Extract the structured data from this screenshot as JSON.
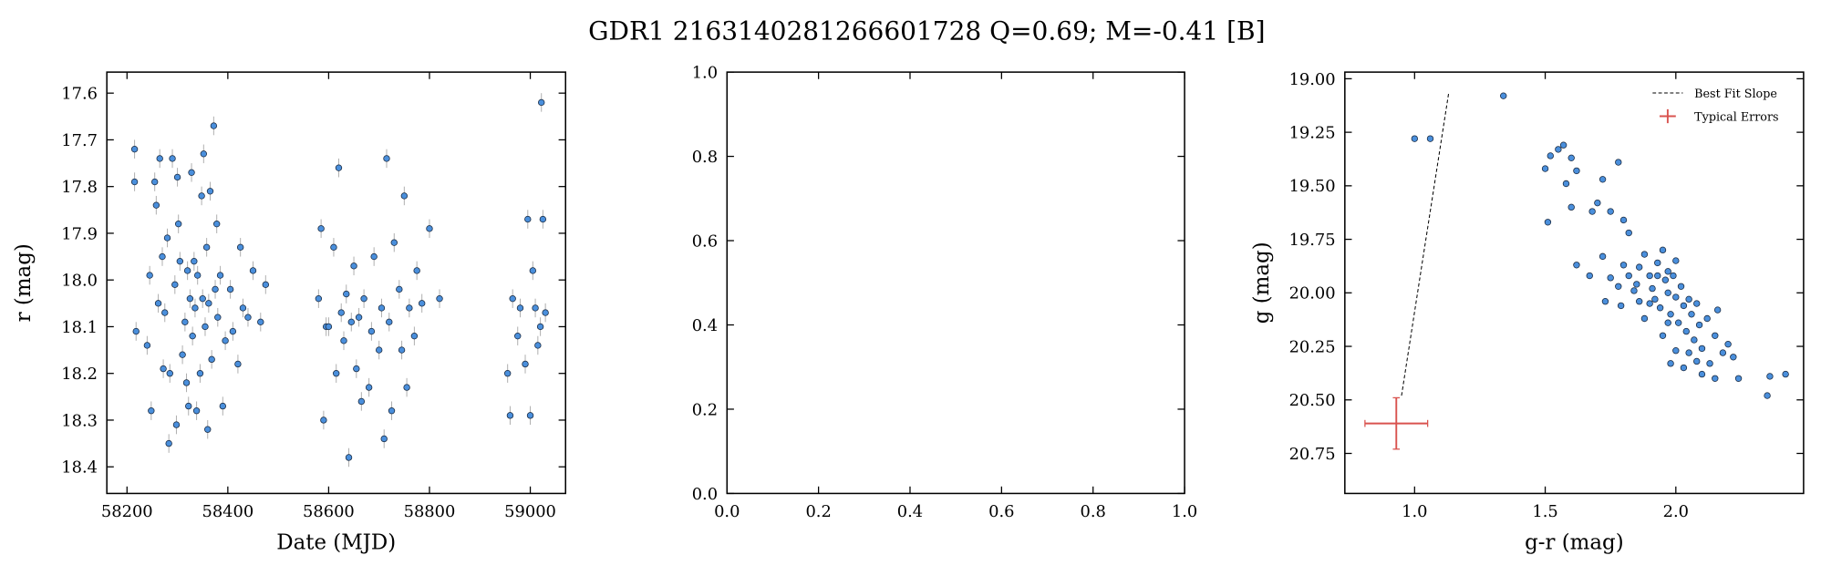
{
  "title": "GDR1 2163140281266601728  Q=0.69; M=-0.41 [B]",
  "chart_data": [
    {
      "type": "scatter",
      "xlabel": "Date (MJD)",
      "ylabel": "r (mag)",
      "color": "#4a8fdc",
      "edgecolor": "#1a2a40",
      "errcolor": "#b0b0b0",
      "yerr": 0.02,
      "y_inverted": true,
      "xlim": [
        58160,
        59070
      ],
      "ylim": [
        17.555,
        18.457
      ],
      "xticks": [
        58200,
        58400,
        58600,
        58800,
        59000
      ],
      "yticks": [
        17.6,
        17.7,
        17.8,
        17.9,
        {
          "value": 18,
          "label": "18.0"
        },
        18.1,
        18.2,
        18.3,
        18.4
      ],
      "x": [
        58215,
        58215,
        58218,
        58240,
        58245,
        58248,
        58255,
        58258,
        58262,
        58265,
        58270,
        58272,
        58275,
        58280,
        58283,
        58285,
        58290,
        58295,
        58298,
        58300,
        58302,
        58305,
        58310,
        58315,
        58318,
        58320,
        58322,
        58325,
        58328,
        58330,
        58333,
        58335,
        58338,
        58340,
        58345,
        58348,
        58350,
        58352,
        58355,
        58358,
        58360,
        58362,
        58365,
        58368,
        58372,
        58375,
        58378,
        58380,
        58385,
        58390,
        58395,
        58405,
        58410,
        58420,
        58425,
        58430,
        58440,
        58450,
        58465,
        58475,
        58580,
        58585,
        58590,
        58595,
        58600,
        58610,
        58615,
        58620,
        58625,
        58630,
        58635,
        58640,
        58645,
        58650,
        58655,
        58660,
        58665,
        58670,
        58680,
        58685,
        58690,
        58700,
        58705,
        58710,
        58715,
        58720,
        58725,
        58730,
        58740,
        58745,
        58750,
        58755,
        58760,
        58770,
        58775,
        58785,
        58800,
        58820,
        58955,
        58960,
        58965,
        58975,
        58980,
        58990,
        58995,
        59000,
        59005,
        59010,
        59015,
        59020,
        59025,
        59022,
        59030
      ],
      "values": [
        17.72,
        17.79,
        18.11,
        18.14,
        17.99,
        18.28,
        17.79,
        17.84,
        18.05,
        17.74,
        17.95,
        18.19,
        18.07,
        17.91,
        18.35,
        18.2,
        17.74,
        18.01,
        18.31,
        17.78,
        17.88,
        17.96,
        18.16,
        18.09,
        18.22,
        17.98,
        18.27,
        18.04,
        17.77,
        18.12,
        17.96,
        18.06,
        18.28,
        17.99,
        18.2,
        17.82,
        18.04,
        17.73,
        18.1,
        17.93,
        18.32,
        18.05,
        17.81,
        18.17,
        17.67,
        18.02,
        17.88,
        18.08,
        17.99,
        18.27,
        18.13,
        18.02,
        18.11,
        18.18,
        17.93,
        18.06,
        18.08,
        17.98,
        18.09,
        18.01,
        18.04,
        17.89,
        18.3,
        18.1,
        18.1,
        17.93,
        18.2,
        17.76,
        18.07,
        18.13,
        18.03,
        18.38,
        18.09,
        17.97,
        18.19,
        18.08,
        18.26,
        18.04,
        18.23,
        18.11,
        17.95,
        18.15,
        18.06,
        18.34,
        17.74,
        18.09,
        18.28,
        17.92,
        18.02,
        18.15,
        17.82,
        18.23,
        18.06,
        18.12,
        17.98,
        18.05,
        17.89,
        18.04,
        18.2,
        18.29,
        18.04,
        18.12,
        18.06,
        18.18,
        17.87,
        18.29,
        17.98,
        18.06,
        18.14,
        18.1,
        17.87,
        17.62,
        18.07
      ]
    },
    {
      "type": "axes",
      "xlim": [
        0,
        1
      ],
      "ylim": [
        0,
        1
      ],
      "xticks": [
        {
          "value": 0,
          "label": "0.0"
        },
        0.2,
        0.4,
        0.6,
        0.8,
        {
          "value": 1,
          "label": "1.0"
        }
      ],
      "yticks": [
        {
          "value": 0,
          "label": "0.0"
        },
        0.2,
        0.4,
        0.6,
        0.8,
        {
          "value": 1,
          "label": "1.0"
        }
      ]
    },
    {
      "type": "scatter",
      "xlabel": "g-r (mag)",
      "ylabel": "g (mag)",
      "color": "#4a8fdc",
      "edgecolor": "#1a2a40",
      "y_inverted": true,
      "legend": "upper right",
      "xlim": [
        0.733,
        2.489
      ],
      "ylim": [
        18.969,
        20.937
      ],
      "xticks": [
        {
          "value": 1,
          "label": "1.0"
        },
        1.5,
        {
          "value": 2,
          "label": "2.0"
        }
      ],
      "yticks": [
        {
          "value": 19,
          "label": "19.00"
        },
        19.25,
        {
          "value": 19.5,
          "label": "19.50"
        },
        19.75,
        {
          "value": 20,
          "label": "20.00"
        },
        20.25,
        {
          "value": 20.5,
          "label": "20.50"
        },
        20.75
      ],
      "x": [
        1.0,
        1.06,
        1.34,
        1.5,
        1.52,
        1.55,
        1.57,
        1.6,
        1.62,
        1.58,
        1.6,
        1.51,
        1.7,
        1.72,
        1.78,
        1.75,
        1.8,
        1.82,
        1.68,
        1.62,
        1.67,
        1.72,
        1.75,
        1.78,
        1.8,
        1.82,
        1.85,
        1.86,
        1.88,
        1.9,
        1.91,
        1.92,
        1.93,
        1.94,
        1.95,
        1.96,
        1.97,
        1.98,
        1.99,
        2.0,
        2.01,
        2.02,
        2.03,
        2.04,
        2.05,
        2.06,
        2.07,
        2.08,
        2.09,
        2.1,
        2.12,
        2.13,
        2.15,
        2.16,
        2.18,
        2.2,
        2.22,
        2.24,
        2.36,
        2.35,
        2.42,
        1.73,
        1.79,
        1.88,
        1.95,
        2.0,
        2.03,
        2.1,
        2.15,
        1.84,
        1.9,
        1.97,
        2.05,
        2.08,
        1.98,
        1.86,
        2.0,
        1.93,
        1.97
      ],
      "values": [
        19.28,
        19.28,
        19.08,
        19.42,
        19.36,
        19.33,
        19.31,
        19.37,
        19.43,
        19.49,
        19.6,
        19.67,
        19.58,
        19.47,
        19.39,
        19.62,
        19.66,
        19.72,
        19.62,
        19.87,
        19.92,
        19.83,
        19.93,
        19.97,
        19.87,
        19.92,
        19.96,
        19.88,
        19.82,
        19.92,
        19.98,
        20.03,
        19.86,
        20.07,
        19.8,
        19.94,
        20.0,
        20.1,
        19.92,
        20.02,
        20.14,
        19.97,
        20.06,
        20.18,
        20.03,
        20.1,
        20.22,
        20.05,
        20.15,
        20.26,
        20.12,
        20.33,
        20.2,
        20.08,
        20.28,
        20.24,
        20.3,
        20.4,
        20.39,
        20.48,
        20.38,
        20.04,
        20.06,
        20.12,
        20.2,
        20.27,
        20.35,
        20.38,
        20.4,
        19.99,
        20.05,
        20.14,
        20.28,
        20.32,
        20.33,
        20.04,
        19.85,
        19.92,
        19.9
      ],
      "fit_line": {
        "name": "Best Fit Slope",
        "color": "#000000",
        "x": [
          0.95,
          1.13
        ],
        "values": [
          20.48,
          19.07
        ]
      },
      "typical_errors": {
        "name": "Typical Errors",
        "color": "#d9534f",
        "x": 0.93,
        "y": 20.61,
        "xerr": 0.12,
        "yerr": 0.12
      }
    }
  ]
}
